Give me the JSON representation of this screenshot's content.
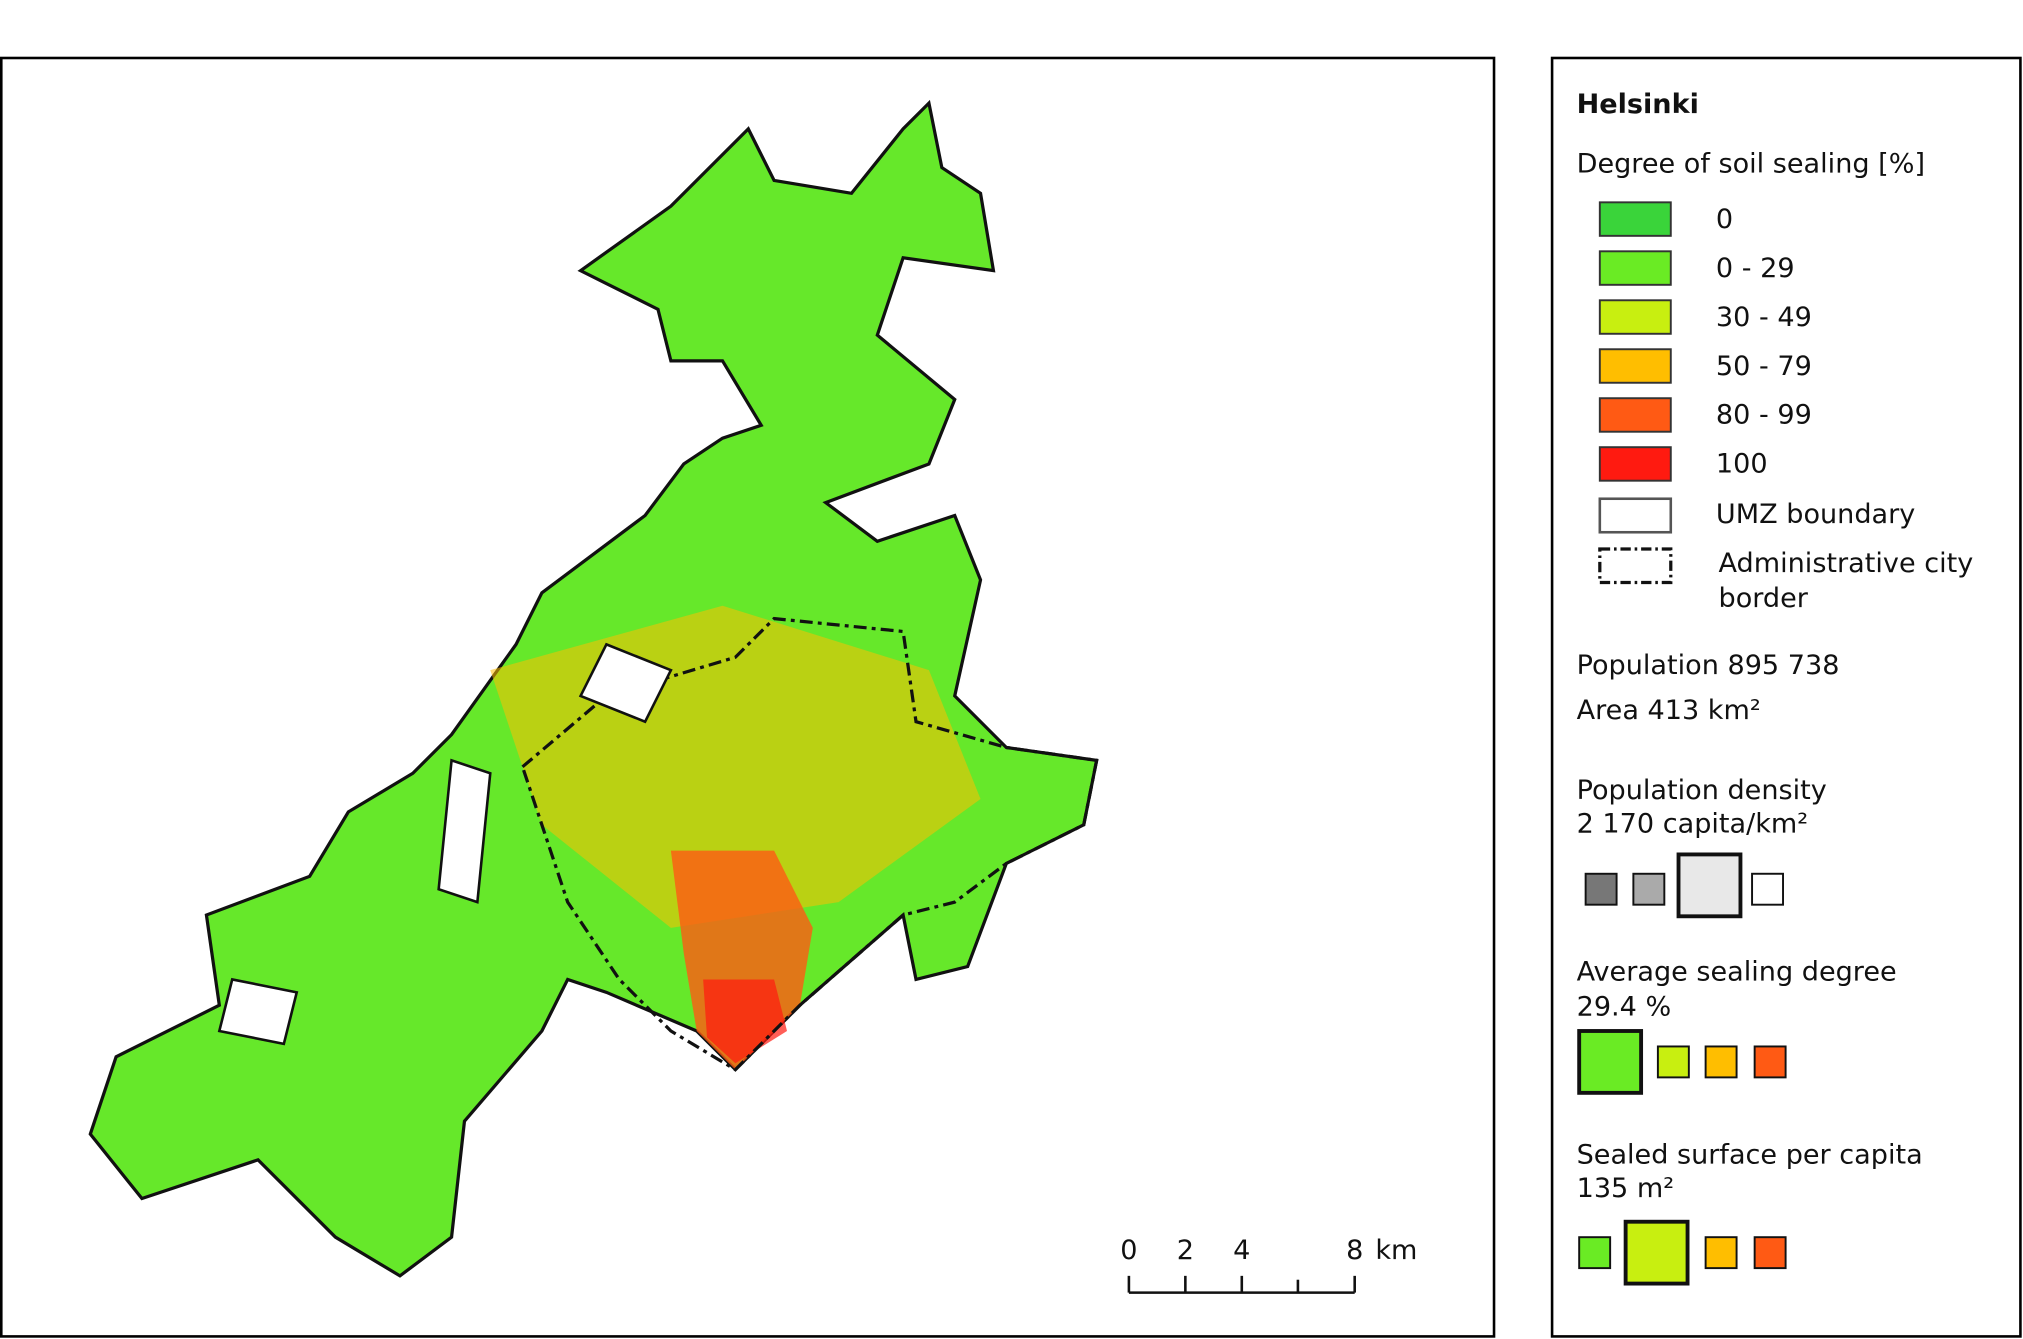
{
  "map": {
    "title": "Helsinki",
    "legend": {
      "title": "Degree of soil sealing [%]",
      "items": [
        {
          "label": "0",
          "color": "#3ad43a"
        },
        {
          "label": "0 - 29",
          "color": "#6aeb24"
        },
        {
          "label": "30 - 49",
          "color": "#c8ef10"
        },
        {
          "label": "50 - 79",
          "color": "#ffbe00"
        },
        {
          "label": "80 - 99",
          "color": "#ff5a14"
        },
        {
          "label": "100",
          "color": "#ff1a10"
        }
      ],
      "umz": "UMZ boundary",
      "admin": [
        "Administrative city",
        "border"
      ]
    },
    "population": "Population 895 738",
    "area": "Area 413 km²",
    "density": [
      "Population density",
      "2 170 capita/km²"
    ],
    "sealing": [
      "Average sealing degree",
      "29.4 %"
    ],
    "per_capita": [
      "Sealed surface  per capita",
      "135 m²"
    ],
    "scale": {
      "ticks": [
        0,
        2,
        4,
        8
      ],
      "unit": "km"
    }
  }
}
